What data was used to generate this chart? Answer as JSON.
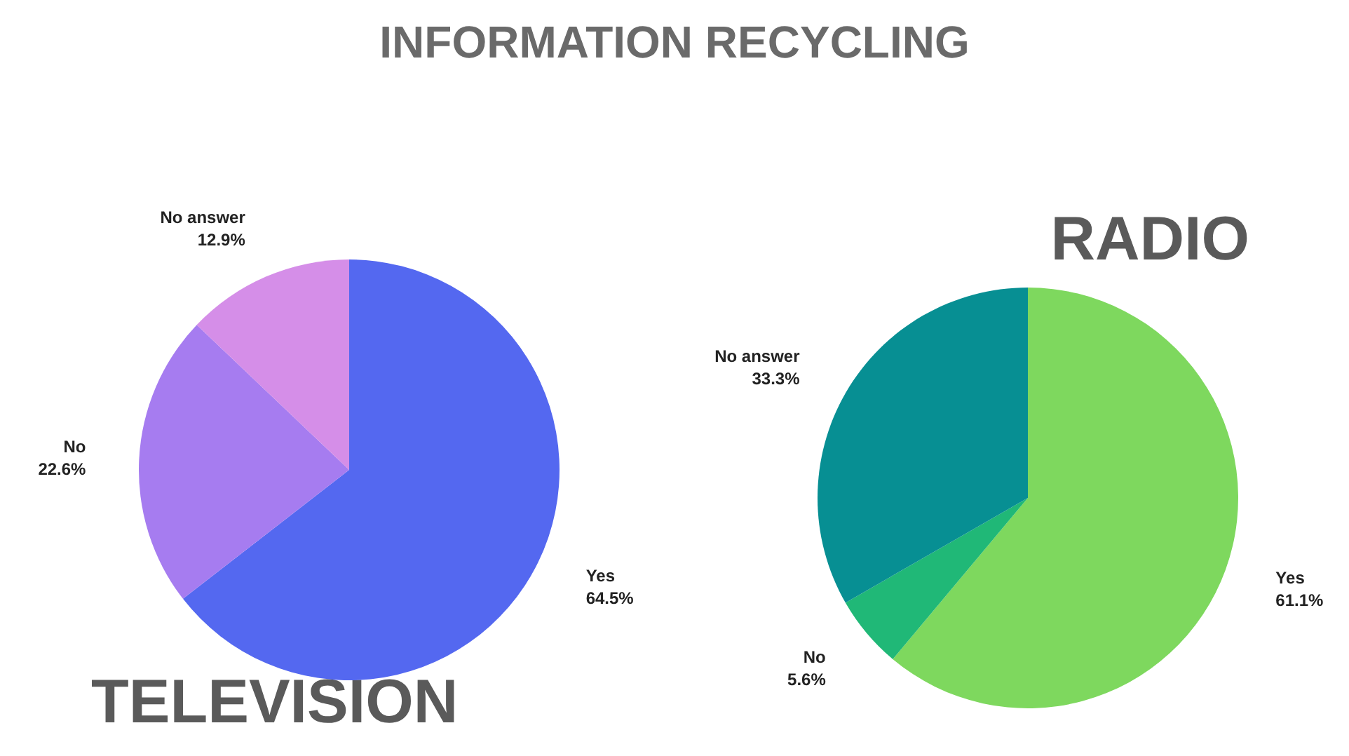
{
  "chart_data": [
    {
      "type": "pie",
      "title": "TELEVISION",
      "annotations": [
        "INFORMATION RECYCLING"
      ],
      "categories": [
        "Yes",
        "No",
        "No answer"
      ],
      "values": [
        64.5,
        22.6,
        12.9
      ],
      "value_labels": [
        "64.5%",
        "22.6%",
        "12.9%"
      ],
      "colors": [
        "#5468f0",
        "#a67cf0",
        "#d58ee8"
      ],
      "legend": false
    },
    {
      "type": "pie",
      "title": "RADIO",
      "categories": [
        "Yes",
        "No",
        "No answer"
      ],
      "values": [
        61.1,
        5.6,
        33.3
      ],
      "value_labels": [
        "61.1%",
        "5.6%",
        "33.3%"
      ],
      "colors": [
        "#7ed85e",
        "#20b877",
        "#078f93"
      ],
      "legend": false
    }
  ]
}
